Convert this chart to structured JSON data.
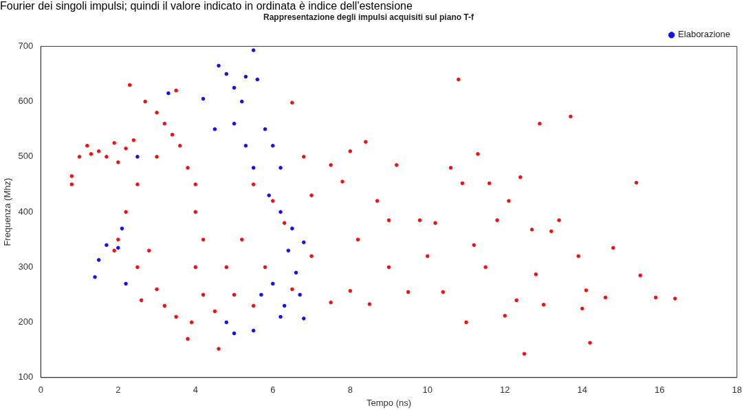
{
  "chart_data": {
    "type": "scatter",
    "title": "Rappresentazione degli impulsi acquisiti sul piano T-f",
    "xlabel": "Tempo (ns)",
    "ylabel": "Frequenza (Mhz)",
    "annotations": [
      "Fourier dei singoli impulsi; quindi il valore indicato in ordinata è indice dell'estensione"
    ],
    "xlim": [
      0,
      18
    ],
    "xticks": [
      0,
      2,
      4,
      6,
      8,
      10,
      12,
      14,
      16,
      18
    ],
    "ylim": [
      100,
      700
    ],
    "yticks": [
      100,
      200,
      300,
      400,
      500,
      600,
      700
    ],
    "legend": "top right",
    "marker": "circle",
    "grid": false,
    "series": [
      {
        "name": "Elaborazione",
        "color": "#1010f0",
        "x": [
          1.4,
          1.5,
          1.7,
          2.0,
          2.1,
          2.2,
          2.5,
          3.3,
          4.2,
          4.6,
          4.8,
          5.0,
          5.3,
          5.5,
          5.6,
          5.0,
          5.3,
          5.5,
          5.8,
          6.0,
          5.9,
          6.2,
          6.5,
          6.4,
          6.8,
          6.6,
          6.7,
          6.8,
          6.2,
          5.5,
          5.0,
          4.8,
          5.7,
          5.2,
          4.5,
          6.2,
          6.0,
          6.3
        ],
        "values": [
          282,
          313,
          340,
          335,
          370,
          270,
          500,
          615,
          605,
          665,
          650,
          625,
          645,
          693,
          640,
          560,
          520,
          480,
          550,
          520,
          430,
          400,
          370,
          330,
          345,
          290,
          250,
          207,
          210,
          185,
          180,
          200,
          250,
          600,
          550,
          480,
          270,
          230
        ]
      },
      {
        "color": "#f01010",
        "x": [
          0.8,
          0.8,
          1.0,
          1.2,
          1.3,
          1.5,
          1.7,
          1.9,
          2.0,
          2.2,
          2.4,
          2.3,
          2.7,
          3.0,
          3.2,
          3.4,
          3.6,
          3.0,
          2.5,
          2.2,
          2.0,
          1.9,
          2.5,
          2.6,
          2.8,
          3.0,
          3.2,
          3.5,
          3.5,
          3.8,
          3.9,
          4.0,
          4.0,
          4.0,
          3.8,
          4.2,
          4.2,
          4.5,
          4.6,
          4.8,
          5.0,
          5.2,
          5.5,
          5.5,
          5.8,
          6.0,
          6.3,
          6.5,
          6.5,
          6.8,
          7.0,
          7.0,
          7.5,
          7.5,
          7.8,
          8.0,
          8.0,
          8.2,
          8.4,
          8.5,
          8.7,
          9.0,
          9.0,
          9.2,
          9.5,
          9.8,
          10.0,
          10.2,
          10.4,
          10.6,
          10.8,
          10.9,
          11.0,
          11.2,
          11.3,
          11.5,
          11.6,
          11.8,
          12.0,
          12.1,
          12.3,
          12.4,
          12.5,
          12.7,
          12.8,
          12.9,
          13.0,
          13.2,
          13.4,
          13.7,
          13.9,
          14.0,
          14.2,
          14.1,
          14.6,
          14.8,
          15.4,
          15.5,
          15.9,
          16.4
        ],
        "values": [
          465,
          450,
          500,
          520,
          505,
          510,
          500,
          525,
          490,
          515,
          530,
          630,
          600,
          580,
          560,
          540,
          520,
          500,
          450,
          400,
          350,
          330,
          300,
          240,
          330,
          260,
          230,
          210,
          620,
          170,
          200,
          300,
          400,
          450,
          480,
          350,
          250,
          220,
          152,
          300,
          250,
          350,
          450,
          230,
          300,
          420,
          380,
          598,
          260,
          500,
          320,
          430,
          236,
          485,
          455,
          510,
          257,
          350,
          527,
          233,
          420,
          300,
          385,
          485,
          255,
          385,
          320,
          380,
          255,
          480,
          640,
          452,
          200,
          340,
          505,
          300,
          452,
          385,
          212,
          420,
          240,
          463,
          143,
          368,
          287,
          560,
          232,
          365,
          385,
          573,
          320,
          225,
          163,
          258,
          245,
          335,
          453,
          285,
          245,
          243
        ]
      }
    ]
  }
}
